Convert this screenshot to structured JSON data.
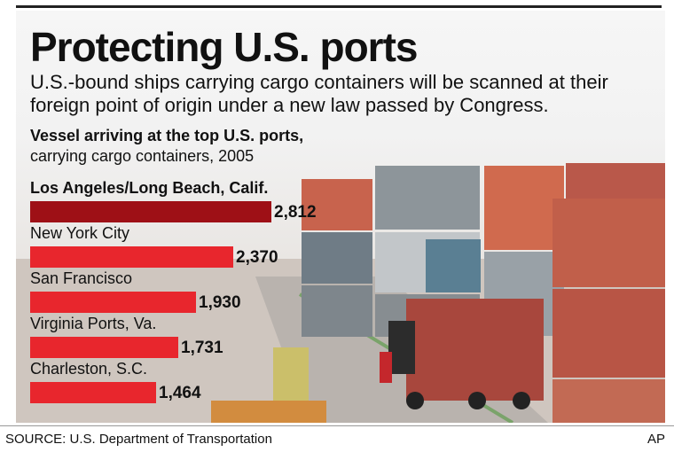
{
  "headline": "Protecting U.S. ports",
  "subtitle": "U.S.-bound ships carrying cargo containers will be scanned at their foreign point of origin under a new law passed by Congress.",
  "source": "SOURCE: U.S. Department of Transportation",
  "credit": "AP",
  "colors": {
    "highlight_bar": "#9e1016",
    "bar": "#e8262d"
  },
  "chart_data": {
    "type": "bar",
    "orientation": "horizontal",
    "title": "Vessel arriving at the top U.S. ports,",
    "subtitle": "carrying cargo containers, 2005",
    "categories": [
      "Los Angeles/Long Beach, Calif.",
      "New York City",
      "San Francisco",
      "Virginia Ports, Va.",
      "Charleston, S.C."
    ],
    "values": [
      2812,
      2370,
      1930,
      1731,
      1464
    ],
    "value_labels": [
      "2,812",
      "2,370",
      "1,930",
      "1,731",
      "1,464"
    ],
    "xlim": [
      0,
      3000
    ],
    "grid": false,
    "legend": "none"
  }
}
